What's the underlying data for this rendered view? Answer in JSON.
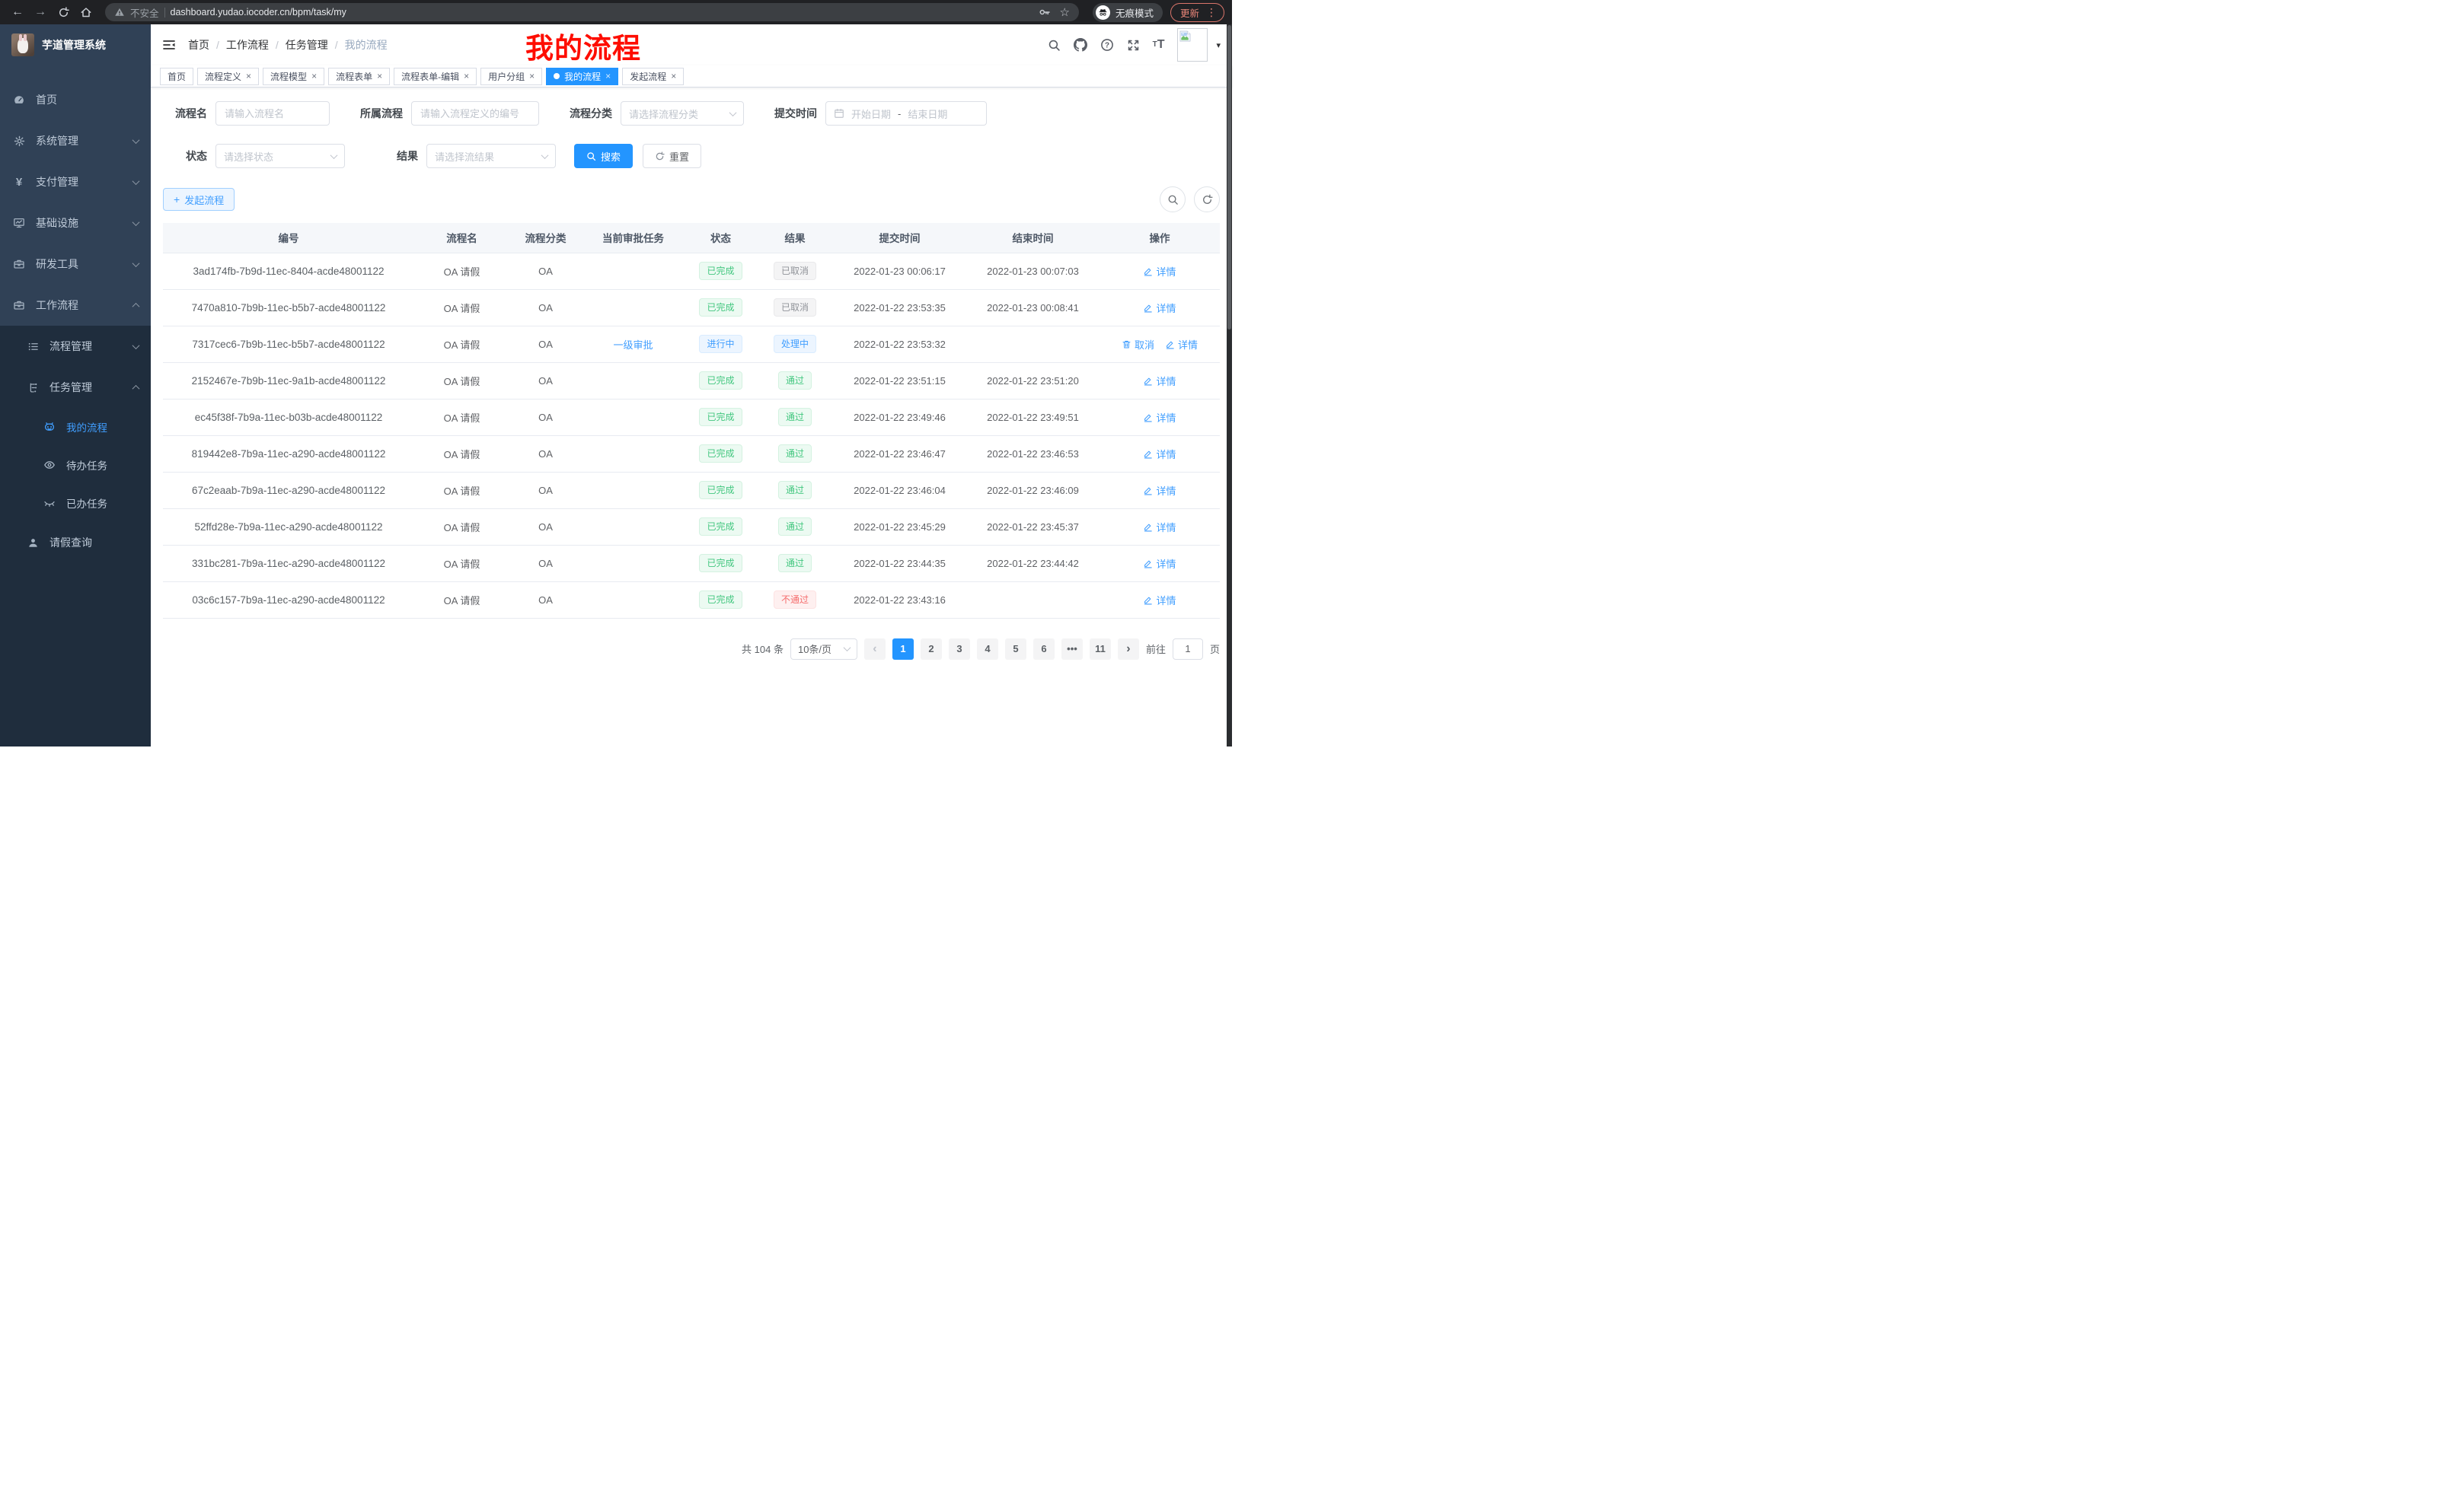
{
  "browser": {
    "security_label": "不安全",
    "url": "dashboard.yudao.iocoder.cn/bpm/task/my",
    "incognito_label": "无痕模式",
    "update_label": "更新"
  },
  "sidebar": {
    "app_title": "芋道管理系统",
    "menu": [
      {
        "label": "首页",
        "icon": "dashboard-icon",
        "chevron": ""
      },
      {
        "label": "系统管理",
        "icon": "gear-icon",
        "chevron": "down"
      },
      {
        "label": "支付管理",
        "icon": "yen-icon",
        "chevron": "down"
      },
      {
        "label": "基础设施",
        "icon": "monitor-icon",
        "chevron": "down"
      },
      {
        "label": "研发工具",
        "icon": "toolbox-icon",
        "chevron": "down"
      },
      {
        "label": "工作流程",
        "icon": "briefcase-icon",
        "chevron": "up"
      }
    ],
    "workflow_submenu": [
      {
        "label": "流程管理",
        "icon": "list-icon",
        "level": 2,
        "chevron": "down",
        "active": false
      },
      {
        "label": "任务管理",
        "icon": "flow-icon",
        "level": 2,
        "chevron": "up",
        "active": false
      },
      {
        "label": "我的流程",
        "icon": "robot-icon",
        "level": 3,
        "chevron": "",
        "active": true
      },
      {
        "label": "待办任务",
        "icon": "eye-icon",
        "level": 3,
        "chevron": "",
        "active": false
      },
      {
        "label": "已办任务",
        "icon": "eye-closed-icon",
        "level": 3,
        "chevron": "",
        "active": false
      },
      {
        "label": "请假查询",
        "icon": "user-icon",
        "level": 2,
        "chevron": "",
        "active": false
      }
    ]
  },
  "header": {
    "breadcrumb": [
      "首页",
      "工作流程",
      "任务管理",
      "我的流程"
    ],
    "annotation": "我的流程"
  },
  "tabs": [
    {
      "label": "首页",
      "closable": false,
      "active": false
    },
    {
      "label": "流程定义",
      "closable": true,
      "active": false
    },
    {
      "label": "流程模型",
      "closable": true,
      "active": false
    },
    {
      "label": "流程表单",
      "closable": true,
      "active": false
    },
    {
      "label": "流程表单-编辑",
      "closable": true,
      "active": false
    },
    {
      "label": "用户分组",
      "closable": true,
      "active": false
    },
    {
      "label": "我的流程",
      "closable": true,
      "active": true
    },
    {
      "label": "发起流程",
      "closable": true,
      "active": false
    }
  ],
  "filters": {
    "name_label": "流程名",
    "name_placeholder": "请输入流程名",
    "definition_label": "所属流程",
    "definition_placeholder": "请输入流程定义的编号",
    "category_label": "流程分类",
    "category_placeholder": "请选择流程分类",
    "submit_time_label": "提交时间",
    "start_date_placeholder": "开始日期",
    "range_separator": "-",
    "end_date_placeholder": "结束日期",
    "status_label": "状态",
    "status_placeholder": "请选择状态",
    "result_label": "结果",
    "result_placeholder": "请选择流结果",
    "search_button": "搜索",
    "reset_button": "重置"
  },
  "toolbar": {
    "create_button": "发起流程"
  },
  "table": {
    "columns": [
      "编号",
      "流程名",
      "流程分类",
      "当前审批任务",
      "状态",
      "结果",
      "提交时间",
      "结束时间",
      "操作"
    ],
    "detail_label": "详情",
    "cancel_label": "取消",
    "rows": [
      {
        "id": "3ad174fb-7b9d-11ec-8404-acde48001122",
        "name": "OA 请假",
        "category": "OA",
        "task": "",
        "status": "已完成",
        "status_type": "success",
        "result": "已取消",
        "result_type": "info",
        "submit_time": "2022-01-23 00:06:17",
        "end_time": "2022-01-23 00:07:03",
        "cancelable": false
      },
      {
        "id": "7470a810-7b9b-11ec-b5b7-acde48001122",
        "name": "OA 请假",
        "category": "OA",
        "task": "",
        "status": "已完成",
        "status_type": "success",
        "result": "已取消",
        "result_type": "info",
        "submit_time": "2022-01-22 23:53:35",
        "end_time": "2022-01-23 00:08:41",
        "cancelable": false
      },
      {
        "id": "7317cec6-7b9b-11ec-b5b7-acde48001122",
        "name": "OA 请假",
        "category": "OA",
        "task": "一级审批",
        "status": "进行中",
        "status_type": "primary",
        "result": "处理中",
        "result_type": "primary",
        "submit_time": "2022-01-22 23:53:32",
        "end_time": "",
        "cancelable": true
      },
      {
        "id": "2152467e-7b9b-11ec-9a1b-acde48001122",
        "name": "OA 请假",
        "category": "OA",
        "task": "",
        "status": "已完成",
        "status_type": "success",
        "result": "通过",
        "result_type": "success",
        "submit_time": "2022-01-22 23:51:15",
        "end_time": "2022-01-22 23:51:20",
        "cancelable": false
      },
      {
        "id": "ec45f38f-7b9a-11ec-b03b-acde48001122",
        "name": "OA 请假",
        "category": "OA",
        "task": "",
        "status": "已完成",
        "status_type": "success",
        "result": "通过",
        "result_type": "success",
        "submit_time": "2022-01-22 23:49:46",
        "end_time": "2022-01-22 23:49:51",
        "cancelable": false
      },
      {
        "id": "819442e8-7b9a-11ec-a290-acde48001122",
        "name": "OA 请假",
        "category": "OA",
        "task": "",
        "status": "已完成",
        "status_type": "success",
        "result": "通过",
        "result_type": "success",
        "submit_time": "2022-01-22 23:46:47",
        "end_time": "2022-01-22 23:46:53",
        "cancelable": false
      },
      {
        "id": "67c2eaab-7b9a-11ec-a290-acde48001122",
        "name": "OA 请假",
        "category": "OA",
        "task": "",
        "status": "已完成",
        "status_type": "success",
        "result": "通过",
        "result_type": "success",
        "submit_time": "2022-01-22 23:46:04",
        "end_time": "2022-01-22 23:46:09",
        "cancelable": false
      },
      {
        "id": "52ffd28e-7b9a-11ec-a290-acde48001122",
        "name": "OA 请假",
        "category": "OA",
        "task": "",
        "status": "已完成",
        "status_type": "success",
        "result": "通过",
        "result_type": "success",
        "submit_time": "2022-01-22 23:45:29",
        "end_time": "2022-01-22 23:45:37",
        "cancelable": false
      },
      {
        "id": "331bc281-7b9a-11ec-a290-acde48001122",
        "name": "OA 请假",
        "category": "OA",
        "task": "",
        "status": "已完成",
        "status_type": "success",
        "result": "通过",
        "result_type": "success",
        "submit_time": "2022-01-22 23:44:35",
        "end_time": "2022-01-22 23:44:42",
        "cancelable": false
      },
      {
        "id": "03c6c157-7b9a-11ec-a290-acde48001122",
        "name": "OA 请假",
        "category": "OA",
        "task": "",
        "status": "已完成",
        "status_type": "success",
        "result": "不通过",
        "result_type": "danger",
        "submit_time": "2022-01-22 23:43:16",
        "end_time": "",
        "cancelable": false
      }
    ]
  },
  "pagination": {
    "total_text": "共 104 条",
    "page_size": "10条/页",
    "pages": [
      "1",
      "2",
      "3",
      "4",
      "5",
      "6",
      "•••",
      "11"
    ],
    "active_page": "1",
    "goto_label": "前往",
    "goto_value": "1",
    "goto_suffix": "页"
  },
  "colors": {
    "accent": "#2395ff",
    "success": "#42c77f",
    "danger": "#f56c6c",
    "info": "#909399",
    "sidebar": "#304156",
    "sidebar_dark": "#1f2d3d"
  }
}
